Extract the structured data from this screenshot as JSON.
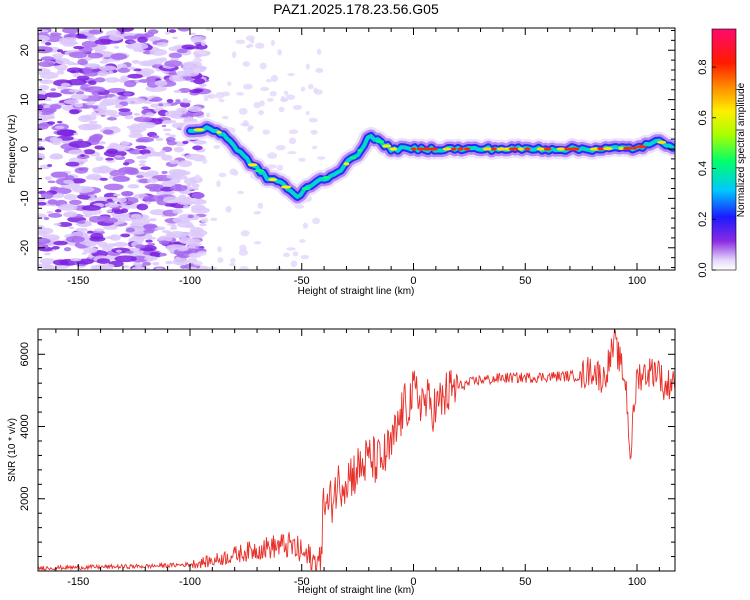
{
  "figure": {
    "title": "PAZ1.2025.178.23.56.G05"
  },
  "chart_data": [
    {
      "type": "heatmap",
      "title": "PAZ1.2025.178.23.56.G05",
      "xlabel": "Height of straight line (km)",
      "ylabel": "Frequency (Hz)",
      "xlim": [
        -168,
        117
      ],
      "ylim": [
        -24.5,
        24.5
      ],
      "xticks": [
        -150,
        -100,
        -50,
        0,
        50,
        100
      ],
      "yticks": [
        -20,
        -10,
        0,
        10,
        20
      ],
      "colorbar": {
        "label": "Normalized spectral amplitude",
        "range": [
          0,
          0.95
        ],
        "ticks": [
          0.0,
          0.2,
          0.4,
          0.6,
          0.8
        ],
        "colormap": "rainbow (white-violet-blue-cyan-green-yellow-red-magenta)"
      },
      "ridge": {
        "description": "dominant spectral peak frequency vs height",
        "x": [
          -100,
          -95,
          -90,
          -85,
          -80,
          -75,
          -70,
          -65,
          -60,
          -55,
          -52,
          -50,
          -47,
          -45,
          -40,
          -35,
          -30,
          -25,
          -20,
          -15,
          -10,
          0,
          20,
          40,
          60,
          80,
          100,
          110,
          117
        ],
        "y": [
          3.5,
          4,
          4,
          3,
          0.5,
          -2,
          -4,
          -6,
          -6.5,
          -8.5,
          -10,
          -9,
          -7.5,
          -7,
          -6,
          -5,
          -3,
          -1,
          2.5,
          1.5,
          0,
          0,
          0,
          0,
          0,
          0,
          0.2,
          1.5,
          0.5
        ]
      },
      "noise_region": {
        "x_range": [
          -168,
          -100
        ],
        "description": "scattered low-amplitude noise"
      },
      "grid": false
    },
    {
      "type": "line",
      "xlabel": "Height of straight line (km)",
      "ylabel": "SNR (10 * v/v)",
      "xlim": [
        -168,
        117
      ],
      "ylim": [
        0,
        6700
      ],
      "xticks": [
        -150,
        -100,
        -50,
        0,
        50,
        100
      ],
      "yticks": [
        2000,
        4000,
        6000
      ],
      "color": "#e8302a",
      "series": [
        {
          "x": [
            -168,
            -150,
            -120,
            -100,
            -90,
            -80,
            -70,
            -60,
            -55,
            -50,
            -45,
            -42,
            -40,
            -38,
            -35,
            -30,
            -25,
            -20,
            -15,
            -10,
            -5,
            0,
            5,
            10,
            15,
            20,
            25,
            30,
            35,
            40,
            50,
            60,
            70,
            75,
            80,
            85,
            90,
            95,
            97,
            100,
            105,
            110,
            112,
            117
          ],
          "y": [
            80,
            100,
            130,
            180,
            280,
            450,
            600,
            700,
            700,
            500,
            250,
            200,
            2000,
            1700,
            2300,
            2600,
            2800,
            3100,
            3000,
            3400,
            4400,
            4900,
            4700,
            4500,
            4900,
            5100,
            5200,
            5300,
            5300,
            5350,
            5350,
            5380,
            5400,
            5400,
            5600,
            5300,
            6300,
            5200,
            3200,
            5400,
            5500,
            5600,
            5000,
            5400
          ]
        }
      ],
      "grid": false
    }
  ]
}
